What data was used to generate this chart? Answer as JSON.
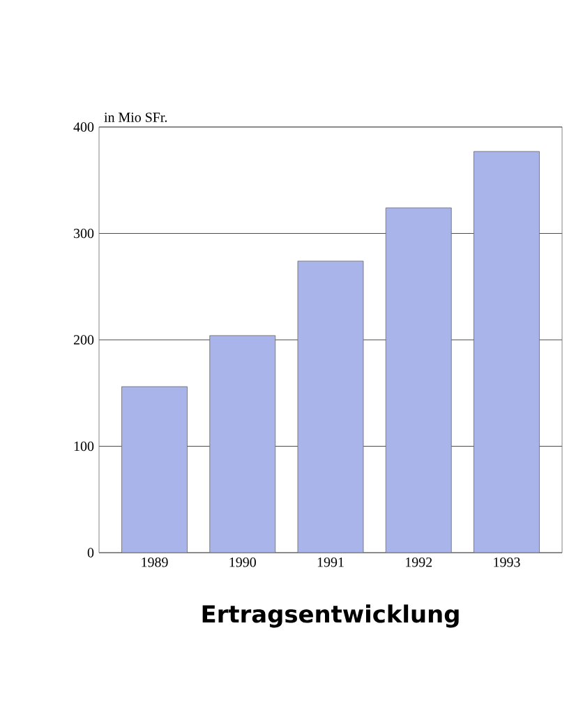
{
  "chart_data": {
    "type": "bar",
    "title": "Ertragsentwicklung",
    "ylabel": "in Mio SFr.",
    "categories": [
      "1989",
      "1990",
      "1991",
      "1992",
      "1993"
    ],
    "values": [
      156,
      204,
      274,
      324,
      377
    ],
    "color": "#a9b5ea",
    "ylim": [
      0,
      400
    ],
    "yticks": [
      0,
      100,
      200,
      300,
      400
    ],
    "grid": "y"
  }
}
